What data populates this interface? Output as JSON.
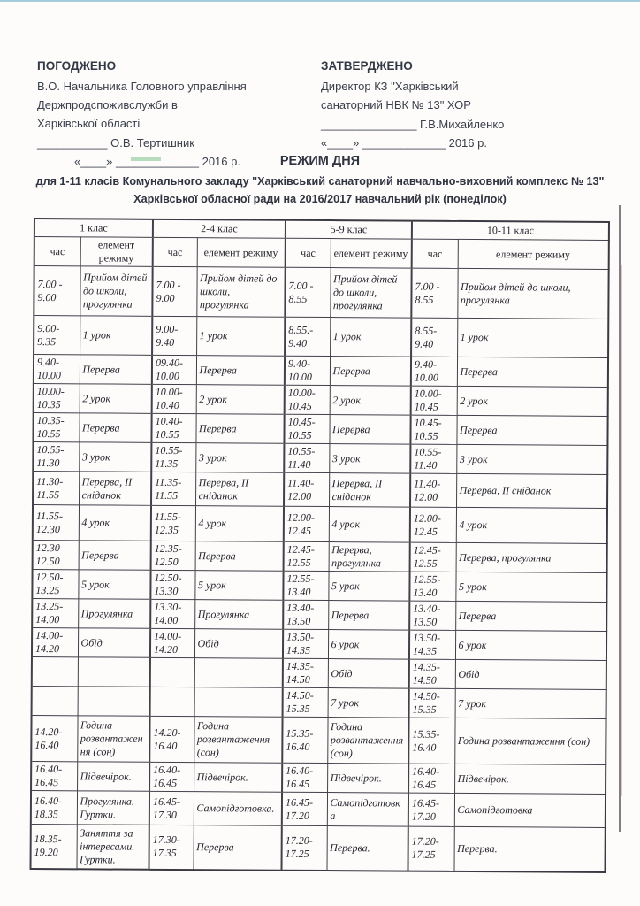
{
  "colors": {
    "paper": "#fdfcfb",
    "table_border": "#414149",
    "scan_top_edge": "#8fc0d4",
    "scan_right_edge": "#55555c"
  },
  "approval_left": {
    "title": "ПОГОДЖЕНО",
    "lines": [
      "В.О. Начальника Головного управління",
      "Держпродспоживслужби в",
      "Харківської області"
    ],
    "signature_line": "___________ О.В. Тертишник",
    "date_line": "«____» _____________ 2016 р."
  },
  "approval_right": {
    "title": "ЗАТВЕРДЖЕНО",
    "lines": [
      "Директор КЗ \"Харківський",
      "санаторний НВК № 13\" ХОР"
    ],
    "signature_line": "_______________  Г.В.Михайленко",
    "date_line": "«____» _____________ 2016 р."
  },
  "titles": {
    "main": "РЕЖИМ  ДНЯ",
    "subtitle1": "для 1-11 класів Комунального закладу \"Харківський санаторний навчально-виховний  комплекс № 13\"",
    "subtitle2": "Харківської обласної ради на 2016/2017 навчальний рік (понеділок)"
  },
  "table": {
    "groups": [
      "1 клас",
      "2-4 клас",
      "5-9 клас",
      "10-11 клас"
    ],
    "col_time": "час",
    "col_element": "елемент режиму",
    "rows": [
      [
        "7.00 - 9.00",
        "Прийом дітей до школи, прогулянка",
        "7.00 - 9.00",
        "Прийом дітей до школи, прогулянка",
        "7.00 - 8.55",
        "Прийом дітей до школи, прогулянка",
        "7.00 - 8.55",
        "Прийом дітей до школи, прогулянка"
      ],
      [
        "9.00- 9.35",
        "1 урок",
        "9.00- 9.40",
        "1 урок",
        "8.55.- 9.40",
        "1 урок",
        "8.55- 9.40",
        "1 урок"
      ],
      [
        "9.40- 10.00",
        "Перерва",
        "09.40- 10.00",
        "Перерва",
        "9.40- 10.00",
        "Перерва",
        "9.40- 10.00",
        "Перерва"
      ],
      [
        "10.00- 10.35",
        "2 урок",
        "10.00- 10.40",
        "2 урок",
        "10.00- 10.45",
        "2 урок",
        "10.00- 10.45",
        "2 урок"
      ],
      [
        "10.35- 10.55",
        "Перерва",
        "10.40- 10.55",
        "Перерва",
        "10.45- 10.55",
        "Перерва",
        "10.45- 10.55",
        "Перерва"
      ],
      [
        "10.55- 11.30",
        "3 урок",
        "10.55- 11.35",
        "3 урок",
        "10.55- 11.40",
        "3 урок",
        "10.55- 11.40",
        "3 урок"
      ],
      [
        "11.30- 11.55",
        "Перерва, ІІ сніданок",
        "11.35- 11.55",
        "Перерва, ІІ сніданок",
        "11.40- 12.00",
        "Перерва, ІІ сніданок",
        "11.40- 12.00",
        "Перерва, ІІ сніданок"
      ],
      [
        "11.55- 12.30",
        "4 урок",
        "11.55- 12.35",
        "4 урок",
        "12.00- 12.45",
        "4 урок",
        "12.00- 12.45",
        "4 урок"
      ],
      [
        "12.30- 12.50",
        "Перерва",
        "12.35- 12.50",
        "Перерва",
        "12.45- 12.55",
        "Перерва, прогулянка",
        "12.45- 12.55",
        "Перерва, прогулянка"
      ],
      [
        "12.50- 13.25",
        "5 урок",
        "12.50- 13.30",
        "5 урок",
        "12.55- 13.40",
        "5 урок",
        "12.55- 13.40",
        "5 урок"
      ],
      [
        "13.25- 14.00",
        "Прогулянка",
        "13.30- 14.00",
        "Прогулянка",
        "13.40- 13.50",
        "Перерва",
        "13.40- 13.50",
        "Перерва"
      ],
      [
        "14.00- 14.20",
        "Обід",
        "14.00- 14.20",
        "Обід",
        "13.50- 14.35",
        "6 урок",
        "13.50- 14.35",
        "6 урок"
      ],
      [
        "",
        "",
        "",
        "",
        "14.35- 14.50",
        "Обід",
        "14.35- 14.50",
        "Обід"
      ],
      [
        "",
        "",
        "",
        "",
        "14.50- 15.35",
        "7 урок",
        "14.50- 15.35",
        "7 урок"
      ],
      [
        "14.20- 16.40",
        "Година розвантаження (сон)",
        "14.20- 16.40",
        "Година розвантаження (сон)",
        "15.35- 16.40",
        "Година розвантаження (сон)",
        "15.35- 16.40",
        "Година розвантаження (сон)"
      ],
      [
        "16.40- 16.45",
        "Підвечірок.",
        "16.40- 16.45",
        "Підвечірок.",
        "16.40- 16.45",
        "Підвечірок.",
        "16.40- 16.45",
        "Підвечірок."
      ],
      [
        "16.40- 18.35",
        "Прогулянка. Гуртки.",
        "16.45- 17.30",
        "Самопідготовка.",
        "16.45- 17.20",
        "Самопідготовка",
        "16.45- 17.20",
        "Самопідготовка"
      ],
      [
        "18.35- 19.20",
        "Заняття за інтересами. Гуртки.",
        "17.30- 17.35",
        "Перерва",
        "17.20- 17.25",
        "Перерва.",
        "17.20- 17.25",
        "Перерва."
      ]
    ]
  }
}
